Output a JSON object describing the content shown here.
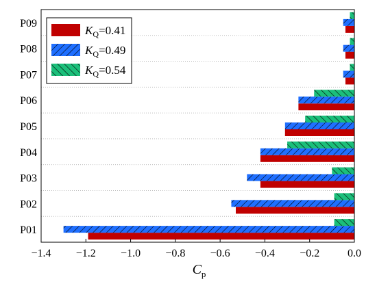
{
  "chart_data": {
    "type": "bar",
    "orientation": "horizontal",
    "categories": [
      "P01",
      "P02",
      "P03",
      "P04",
      "P05",
      "P06",
      "P07",
      "P08",
      "P09"
    ],
    "series": [
      {
        "name_main": "K",
        "name_sub": "Q",
        "name_value": "=0.41",
        "color": "#c00000",
        "pattern": "solid",
        "values": [
          -1.19,
          -0.53,
          -0.42,
          -0.42,
          -0.31,
          -0.25,
          -0.04,
          -0.04,
          -0.04
        ]
      },
      {
        "name_main": "K",
        "name_sub": "Q",
        "name_value": "=0.49",
        "color": "#1f6fff",
        "pattern": "hatch-forward",
        "values": [
          -1.3,
          -0.55,
          -0.48,
          -0.42,
          -0.31,
          -0.25,
          -0.05,
          -0.05,
          -0.05
        ]
      },
      {
        "name_main": "K",
        "name_sub": "Q",
        "name_value": "=0.54",
        "color": "#1bbf7a",
        "pattern": "hatch-backward",
        "values": [
          -0.09,
          -0.09,
          -0.1,
          -0.3,
          -0.22,
          -0.18,
          -0.02,
          -0.02,
          -0.02
        ]
      }
    ],
    "xlabel_main": "C",
    "xlabel_sub": "p",
    "ylabel": "",
    "xlim": [
      -1.4,
      0.0
    ],
    "xticks": [
      "-1.4",
      "-1.2",
      "-1.0",
      "-0.8",
      "-0.6",
      "-0.4",
      "-0.2",
      "0.0"
    ],
    "grid": "horizontal dotted",
    "legend_position": "top-left"
  }
}
